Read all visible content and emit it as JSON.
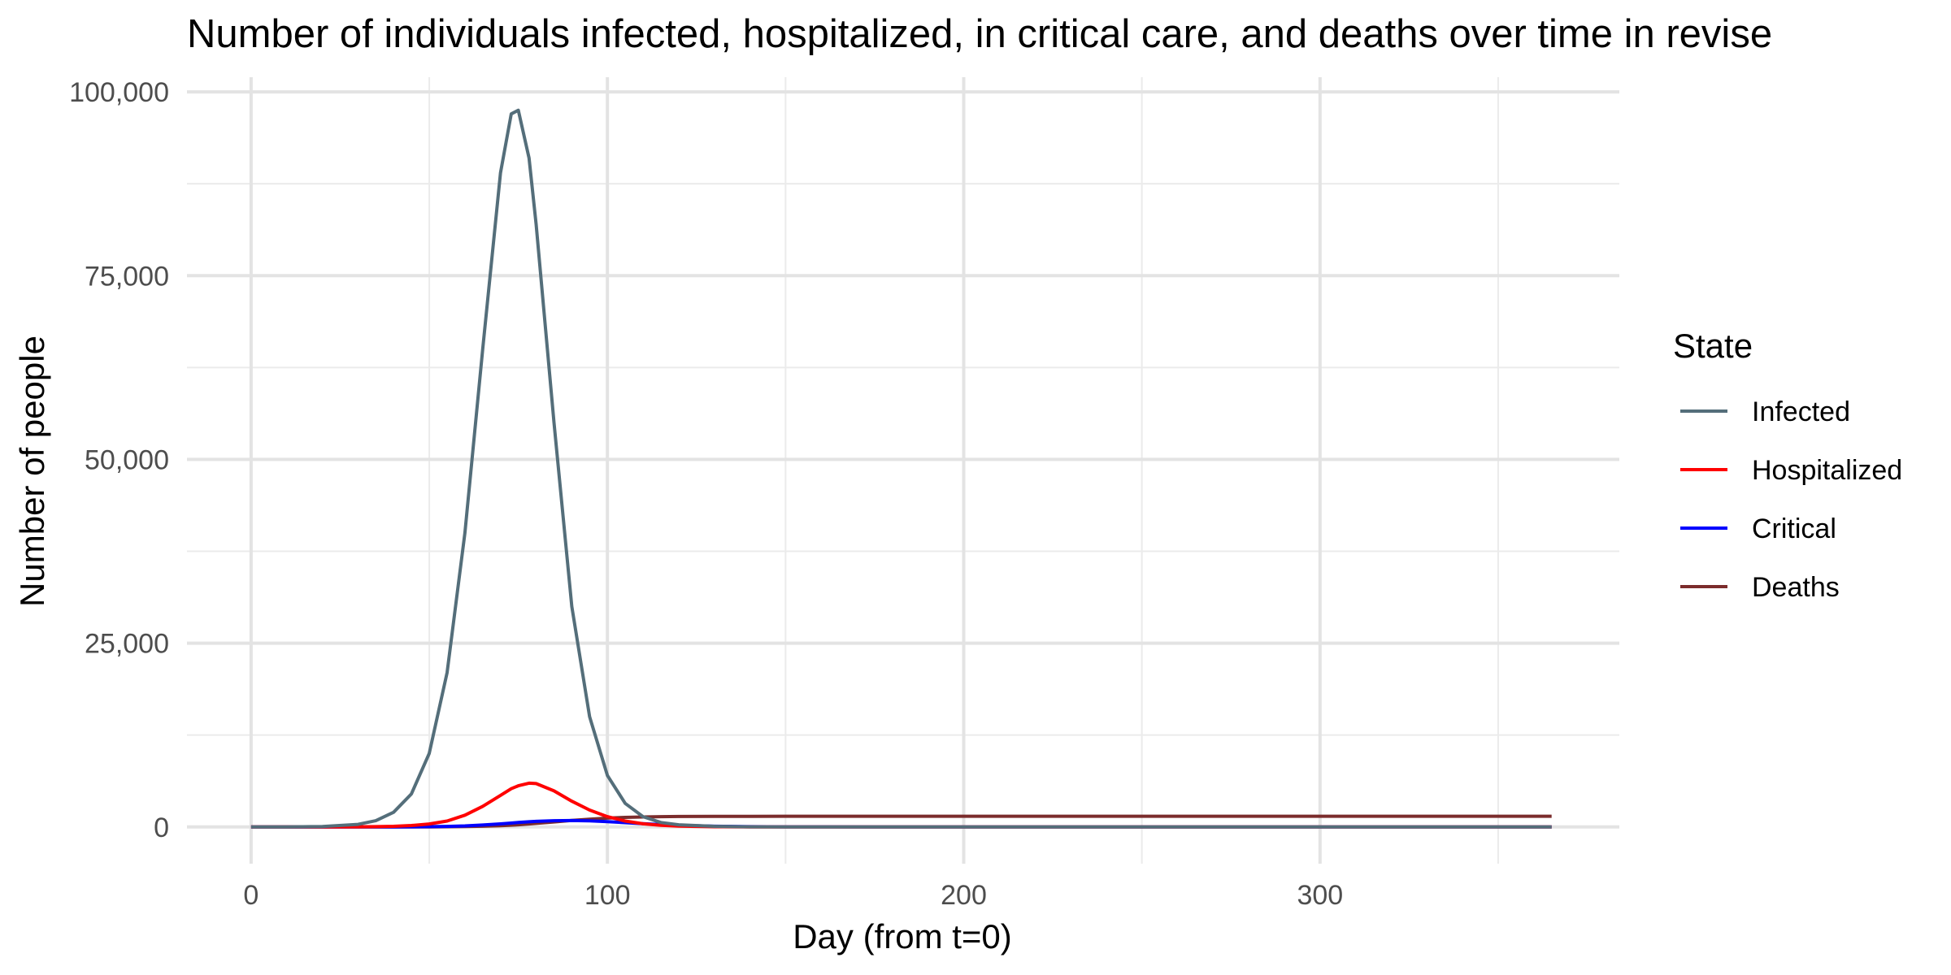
{
  "chart_data": {
    "type": "line",
    "title": "Number of individuals infected, hospitalized, in critical care, and deaths over time in revise",
    "xlabel": "Day (from t=0)",
    "ylabel": "Number of people",
    "xlim": [
      -18,
      384
    ],
    "ylim": [
      -5000,
      102000
    ],
    "x_ticks": [
      0,
      100,
      200,
      300
    ],
    "x_minor": [
      50,
      150,
      250,
      350
    ],
    "y_ticks": [
      0,
      25000,
      50000,
      75000,
      100000
    ],
    "y_tick_labels": [
      "0",
      "25,000",
      "50,000",
      "75,000",
      "100,000"
    ],
    "y_minor": [
      12500,
      37500,
      62500,
      87500
    ],
    "grid": true,
    "legend": {
      "title": "State",
      "position": "right"
    },
    "x": [
      0,
      10,
      20,
      30,
      35,
      40,
      45,
      50,
      55,
      60,
      65,
      70,
      73,
      75,
      78,
      80,
      85,
      90,
      95,
      100,
      105,
      110,
      115,
      120,
      130,
      140,
      150,
      175,
      200,
      250,
      300,
      365
    ],
    "series": [
      {
        "name": "Infected",
        "color": "#546e7a",
        "values": [
          0,
          10,
          60,
          350,
          850,
          2000,
          4500,
          10000,
          21000,
          40000,
          65000,
          89000,
          97000,
          97500,
          91000,
          82000,
          55000,
          30000,
          15000,
          7000,
          3200,
          1400,
          600,
          300,
          80,
          20,
          5,
          0,
          0,
          0,
          0,
          0
        ]
      },
      {
        "name": "Hospitalized",
        "color": "#ff0000",
        "values": [
          0,
          0,
          3,
          15,
          40,
          90,
          190,
          400,
          800,
          1600,
          2800,
          4300,
          5200,
          5600,
          5950,
          5900,
          4900,
          3500,
          2300,
          1400,
          800,
          430,
          220,
          110,
          30,
          8,
          2,
          0,
          0,
          0,
          0,
          0
        ]
      },
      {
        "name": "Critical",
        "color": "#0000ff",
        "values": [
          0,
          0,
          0,
          2,
          4,
          9,
          18,
          35,
          70,
          140,
          260,
          420,
          530,
          600,
          700,
          760,
          850,
          870,
          820,
          720,
          580,
          440,
          320,
          220,
          100,
          40,
          15,
          2,
          0,
          0,
          0,
          0
        ]
      },
      {
        "name": "Deaths",
        "color": "#7b2c2c",
        "values": [
          0,
          0,
          0,
          0,
          1,
          3,
          6,
          12,
          25,
          50,
          95,
          170,
          240,
          300,
          400,
          480,
          680,
          880,
          1050,
          1200,
          1300,
          1360,
          1400,
          1420,
          1440,
          1445,
          1450,
          1450,
          1450,
          1450,
          1450,
          1450
        ]
      }
    ]
  }
}
